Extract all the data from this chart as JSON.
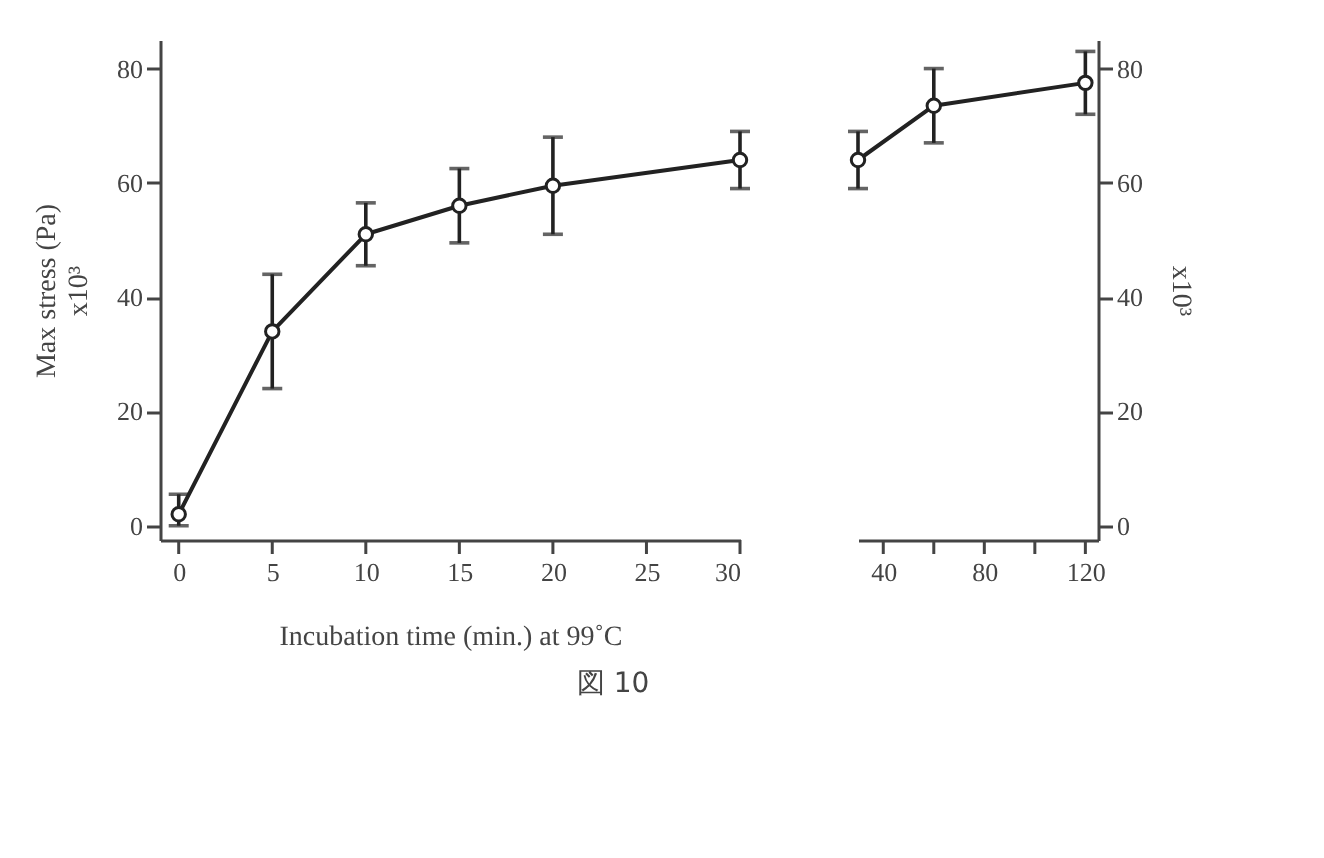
{
  "chart_data": [
    {
      "type": "line",
      "ylabel": "Max stress (Pa)",
      "xlabel": "Incubation time (min.) at 99˚C",
      "annotations": [
        "x10³",
        "図 10"
      ],
      "x": [
        0,
        5,
        10,
        15,
        20,
        30
      ],
      "values": [
        2,
        34,
        51,
        56,
        59.5,
        64
      ],
      "errors": [
        [
          0,
          5.5
        ],
        [
          24,
          44
        ],
        [
          45.5,
          56.5
        ],
        [
          49.5,
          62.5
        ],
        [
          51,
          68
        ],
        [
          59,
          69
        ]
      ],
      "color": "#222222",
      "marker": "circle",
      "line_style": "solid",
      "grid": false,
      "xlim": [
        -1,
        30
      ],
      "xticks": [
        0,
        5,
        10,
        15,
        20,
        25,
        30
      ],
      "ylim": [
        -2.5,
        85
      ],
      "yticks": [
        0,
        20,
        40,
        60,
        80
      ]
    },
    {
      "type": "line",
      "annotations": [
        "x10³"
      ],
      "x": [
        30,
        60,
        120
      ],
      "values": [
        64,
        73.5,
        77.5
      ],
      "errors": [
        [
          59,
          69
        ],
        [
          67,
          80
        ],
        [
          72,
          83
        ]
      ],
      "color": "#222222",
      "marker": "circle",
      "line_style": "solid",
      "grid": false,
      "xlim": [
        30,
        125
      ],
      "xticks": [
        40,
        {
          "value": 60,
          "label": null
        },
        80,
        {
          "value": 100,
          "label": null
        },
        120
      ],
      "ylim": [
        -2.5,
        85
      ],
      "yticks": [
        0,
        20,
        40,
        60,
        80
      ]
    }
  ]
}
